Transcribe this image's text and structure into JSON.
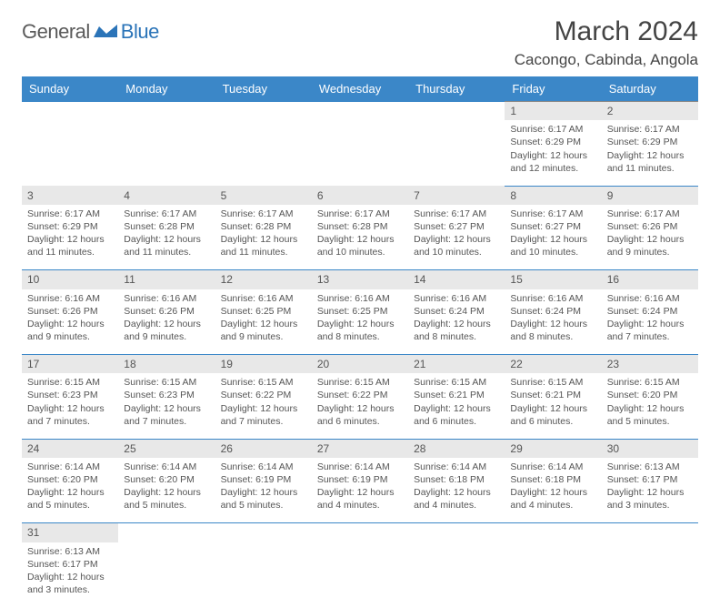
{
  "logo": {
    "general": "General",
    "blue": "Blue"
  },
  "title": "March 2024",
  "location": "Cacongo, Cabinda, Angola",
  "header_color": "#3b87c8",
  "row_divider_color": "#3b87c8",
  "daynum_bg": "#e8e8e8",
  "weekdays": [
    "Sunday",
    "Monday",
    "Tuesday",
    "Wednesday",
    "Thursday",
    "Friday",
    "Saturday"
  ],
  "weeks": [
    {
      "days": [
        null,
        null,
        null,
        null,
        null,
        {
          "n": "1",
          "sunrise": "Sunrise: 6:17 AM",
          "sunset": "Sunset: 6:29 PM",
          "d1": "Daylight: 12 hours",
          "d2": "and 12 minutes."
        },
        {
          "n": "2",
          "sunrise": "Sunrise: 6:17 AM",
          "sunset": "Sunset: 6:29 PM",
          "d1": "Daylight: 12 hours",
          "d2": "and 11 minutes."
        }
      ]
    },
    {
      "days": [
        {
          "n": "3",
          "sunrise": "Sunrise: 6:17 AM",
          "sunset": "Sunset: 6:29 PM",
          "d1": "Daylight: 12 hours",
          "d2": "and 11 minutes."
        },
        {
          "n": "4",
          "sunrise": "Sunrise: 6:17 AM",
          "sunset": "Sunset: 6:28 PM",
          "d1": "Daylight: 12 hours",
          "d2": "and 11 minutes."
        },
        {
          "n": "5",
          "sunrise": "Sunrise: 6:17 AM",
          "sunset": "Sunset: 6:28 PM",
          "d1": "Daylight: 12 hours",
          "d2": "and 11 minutes."
        },
        {
          "n": "6",
          "sunrise": "Sunrise: 6:17 AM",
          "sunset": "Sunset: 6:28 PM",
          "d1": "Daylight: 12 hours",
          "d2": "and 10 minutes."
        },
        {
          "n": "7",
          "sunrise": "Sunrise: 6:17 AM",
          "sunset": "Sunset: 6:27 PM",
          "d1": "Daylight: 12 hours",
          "d2": "and 10 minutes."
        },
        {
          "n": "8",
          "sunrise": "Sunrise: 6:17 AM",
          "sunset": "Sunset: 6:27 PM",
          "d1": "Daylight: 12 hours",
          "d2": "and 10 minutes."
        },
        {
          "n": "9",
          "sunrise": "Sunrise: 6:17 AM",
          "sunset": "Sunset: 6:26 PM",
          "d1": "Daylight: 12 hours",
          "d2": "and 9 minutes."
        }
      ]
    },
    {
      "days": [
        {
          "n": "10",
          "sunrise": "Sunrise: 6:16 AM",
          "sunset": "Sunset: 6:26 PM",
          "d1": "Daylight: 12 hours",
          "d2": "and 9 minutes."
        },
        {
          "n": "11",
          "sunrise": "Sunrise: 6:16 AM",
          "sunset": "Sunset: 6:26 PM",
          "d1": "Daylight: 12 hours",
          "d2": "and 9 minutes."
        },
        {
          "n": "12",
          "sunrise": "Sunrise: 6:16 AM",
          "sunset": "Sunset: 6:25 PM",
          "d1": "Daylight: 12 hours",
          "d2": "and 9 minutes."
        },
        {
          "n": "13",
          "sunrise": "Sunrise: 6:16 AM",
          "sunset": "Sunset: 6:25 PM",
          "d1": "Daylight: 12 hours",
          "d2": "and 8 minutes."
        },
        {
          "n": "14",
          "sunrise": "Sunrise: 6:16 AM",
          "sunset": "Sunset: 6:24 PM",
          "d1": "Daylight: 12 hours",
          "d2": "and 8 minutes."
        },
        {
          "n": "15",
          "sunrise": "Sunrise: 6:16 AM",
          "sunset": "Sunset: 6:24 PM",
          "d1": "Daylight: 12 hours",
          "d2": "and 8 minutes."
        },
        {
          "n": "16",
          "sunrise": "Sunrise: 6:16 AM",
          "sunset": "Sunset: 6:24 PM",
          "d1": "Daylight: 12 hours",
          "d2": "and 7 minutes."
        }
      ]
    },
    {
      "days": [
        {
          "n": "17",
          "sunrise": "Sunrise: 6:15 AM",
          "sunset": "Sunset: 6:23 PM",
          "d1": "Daylight: 12 hours",
          "d2": "and 7 minutes."
        },
        {
          "n": "18",
          "sunrise": "Sunrise: 6:15 AM",
          "sunset": "Sunset: 6:23 PM",
          "d1": "Daylight: 12 hours",
          "d2": "and 7 minutes."
        },
        {
          "n": "19",
          "sunrise": "Sunrise: 6:15 AM",
          "sunset": "Sunset: 6:22 PM",
          "d1": "Daylight: 12 hours",
          "d2": "and 7 minutes."
        },
        {
          "n": "20",
          "sunrise": "Sunrise: 6:15 AM",
          "sunset": "Sunset: 6:22 PM",
          "d1": "Daylight: 12 hours",
          "d2": "and 6 minutes."
        },
        {
          "n": "21",
          "sunrise": "Sunrise: 6:15 AM",
          "sunset": "Sunset: 6:21 PM",
          "d1": "Daylight: 12 hours",
          "d2": "and 6 minutes."
        },
        {
          "n": "22",
          "sunrise": "Sunrise: 6:15 AM",
          "sunset": "Sunset: 6:21 PM",
          "d1": "Daylight: 12 hours",
          "d2": "and 6 minutes."
        },
        {
          "n": "23",
          "sunrise": "Sunrise: 6:15 AM",
          "sunset": "Sunset: 6:20 PM",
          "d1": "Daylight: 12 hours",
          "d2": "and 5 minutes."
        }
      ]
    },
    {
      "days": [
        {
          "n": "24",
          "sunrise": "Sunrise: 6:14 AM",
          "sunset": "Sunset: 6:20 PM",
          "d1": "Daylight: 12 hours",
          "d2": "and 5 minutes."
        },
        {
          "n": "25",
          "sunrise": "Sunrise: 6:14 AM",
          "sunset": "Sunset: 6:20 PM",
          "d1": "Daylight: 12 hours",
          "d2": "and 5 minutes."
        },
        {
          "n": "26",
          "sunrise": "Sunrise: 6:14 AM",
          "sunset": "Sunset: 6:19 PM",
          "d1": "Daylight: 12 hours",
          "d2": "and 5 minutes."
        },
        {
          "n": "27",
          "sunrise": "Sunrise: 6:14 AM",
          "sunset": "Sunset: 6:19 PM",
          "d1": "Daylight: 12 hours",
          "d2": "and 4 minutes."
        },
        {
          "n": "28",
          "sunrise": "Sunrise: 6:14 AM",
          "sunset": "Sunset: 6:18 PM",
          "d1": "Daylight: 12 hours",
          "d2": "and 4 minutes."
        },
        {
          "n": "29",
          "sunrise": "Sunrise: 6:14 AM",
          "sunset": "Sunset: 6:18 PM",
          "d1": "Daylight: 12 hours",
          "d2": "and 4 minutes."
        },
        {
          "n": "30",
          "sunrise": "Sunrise: 6:13 AM",
          "sunset": "Sunset: 6:17 PM",
          "d1": "Daylight: 12 hours",
          "d2": "and 3 minutes."
        }
      ]
    },
    {
      "days": [
        {
          "n": "31",
          "sunrise": "Sunrise: 6:13 AM",
          "sunset": "Sunset: 6:17 PM",
          "d1": "Daylight: 12 hours",
          "d2": "and 3 minutes."
        },
        null,
        null,
        null,
        null,
        null,
        null
      ]
    }
  ]
}
